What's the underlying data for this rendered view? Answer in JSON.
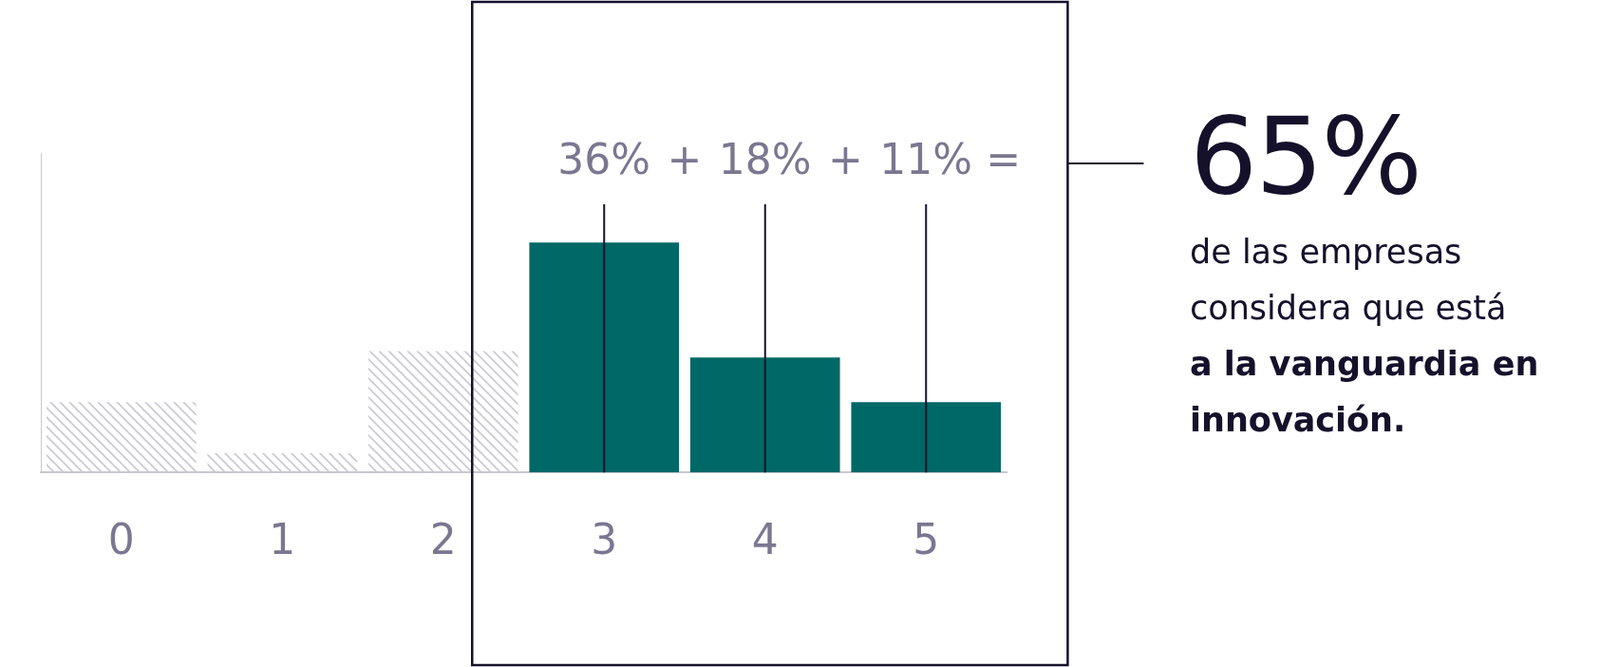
{
  "chart_data": {
    "type": "bar",
    "categories": [
      "0",
      "1",
      "2",
      "3",
      "4",
      "5"
    ],
    "values": [
      11,
      3,
      19,
      36,
      18,
      11
    ],
    "value_labels": [
      null,
      null,
      null,
      "36%",
      "18%",
      "11%"
    ],
    "colors": [
      "#c9c9d3",
      "#c9c9d3",
      "#c9c9d3",
      "#006866",
      "#006866",
      "#006866"
    ],
    "ylim": [
      0,
      50
    ],
    "tick_labels": "x",
    "grid": false,
    "data_labels": true,
    "annotations": {
      "operators": [
        "+",
        "+",
        "="
      ],
      "total": {
        "value": 65,
        "label": "65%"
      },
      "text": [
        "de las empresas",
        "considera que está"
      ],
      "bold_text": [
        "a la vanguardia en",
        "innovación."
      ]
    }
  }
}
